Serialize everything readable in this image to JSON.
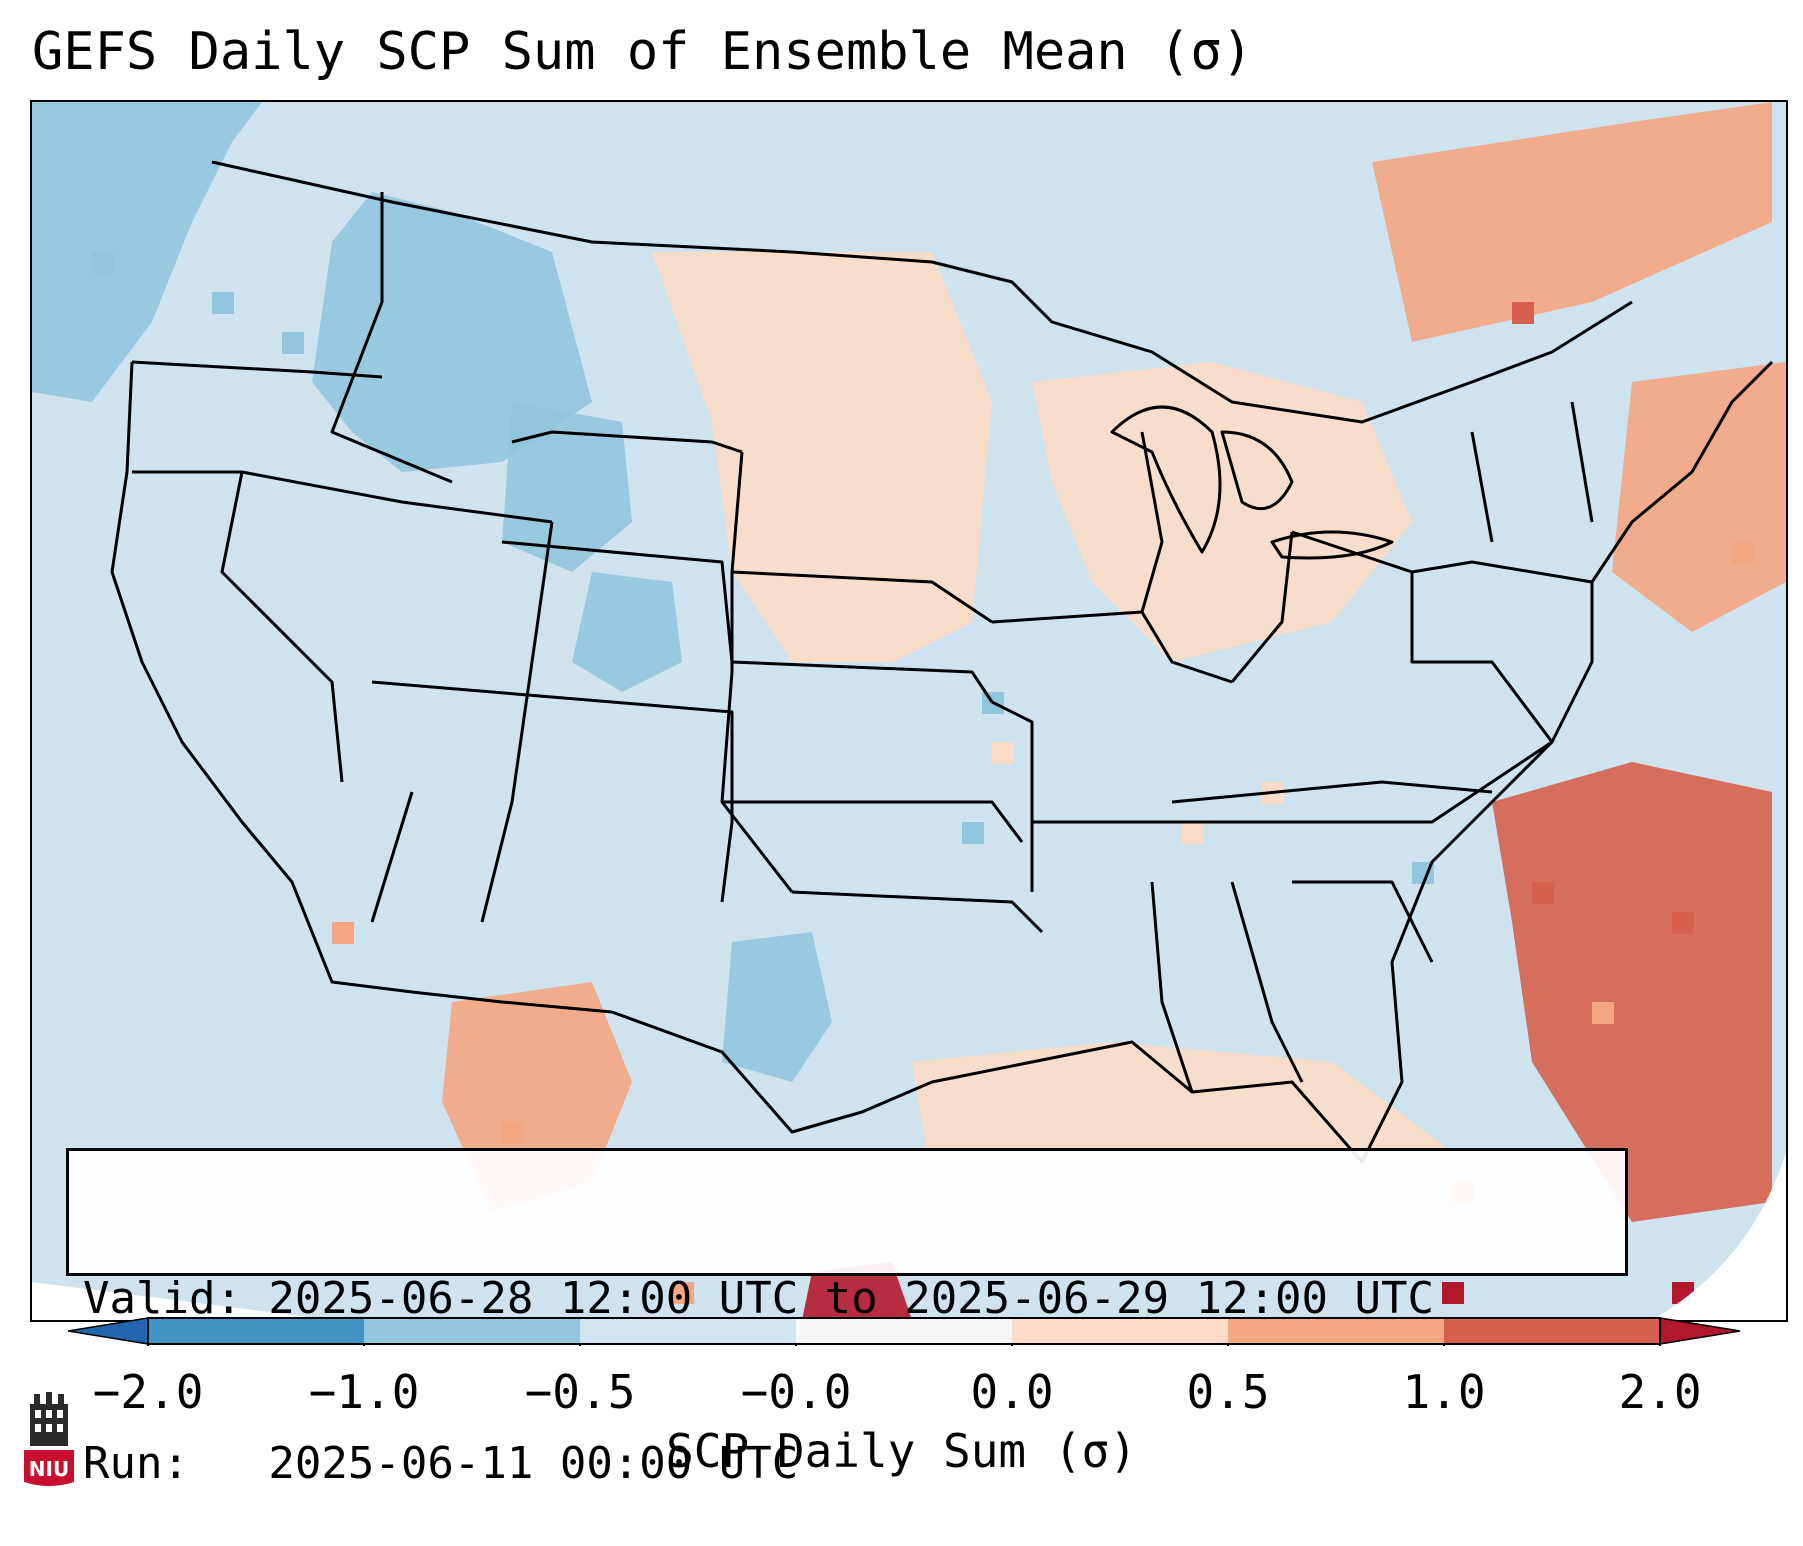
{
  "title": "GEFS Daily SCP Sum of Ensemble Mean (σ)",
  "info": {
    "valid_line": "Valid: 2025-06-28 12:00 UTC to 2025-06-29 12:00 UTC",
    "run_line": "Run:   2025-06-11 00:00 UTC"
  },
  "colorbar": {
    "label": "SCP Daily Sum (σ)",
    "ticks": [
      "−2.0",
      "−1.0",
      "−0.5",
      "−0.0",
      "0.0",
      "0.5",
      "1.0",
      "2.0"
    ],
    "bins": [
      {
        "from": "-2.0",
        "to": "-1.0",
        "color": "#4393c3"
      },
      {
        "from": "-1.0",
        "to": "-0.5",
        "color": "#92c5de"
      },
      {
        "from": "-0.5",
        "to": "-0.0",
        "color": "#d1e5f0"
      },
      {
        "from": "-0.0",
        "to": "0.0",
        "color": "#f7f7f7"
      },
      {
        "from": "0.0",
        "to": "0.5",
        "color": "#fddbc7"
      },
      {
        "from": "0.5",
        "to": "1.0",
        "color": "#f4a582"
      },
      {
        "from": "1.0",
        "to": "2.0",
        "color": "#d6604d"
      }
    ],
    "under_color": "#2166ac",
    "over_color": "#b2182b"
  },
  "logo": {
    "text": "NIU",
    "icon": "niu-castle-logo-icon",
    "color": "#c8102e"
  },
  "map": {
    "background_color": "#d1e5f0",
    "region": "Continental United States",
    "patches": [
      {
        "area": "Pacific Northwest / Washington",
        "category": "-1.0 to -0.5"
      },
      {
        "area": "Idaho / western Montana",
        "category": "-1.0 to -0.5"
      },
      {
        "area": "Wyoming",
        "category": "-1.0 to -0.5"
      },
      {
        "area": "Colorado",
        "category": "-1.0 to -0.5"
      },
      {
        "area": "Central Texas",
        "category": "-1.0 to -0.5"
      },
      {
        "area": "Northern Plains / Dakotas / Nebraska",
        "category": "0.0 to 0.5"
      },
      {
        "area": "Upper Midwest / Great Lakes",
        "category": "0.0 to 0.5"
      },
      {
        "area": "New England / Northeast",
        "category": "0.5 to 1.0"
      },
      {
        "area": "Southern Quebec",
        "category": "0.5 to 1.0"
      },
      {
        "area": "Western Atlantic",
        "category": "1.0 to 2.0"
      },
      {
        "area": "Gulf of Mexico",
        "category": "0.0 to 0.5"
      },
      {
        "area": "Northern Mexico",
        "category": "0.5 to 1.0"
      },
      {
        "area": "Southern Mexico / Cuba",
        "category": "above 2.0"
      }
    ]
  }
}
